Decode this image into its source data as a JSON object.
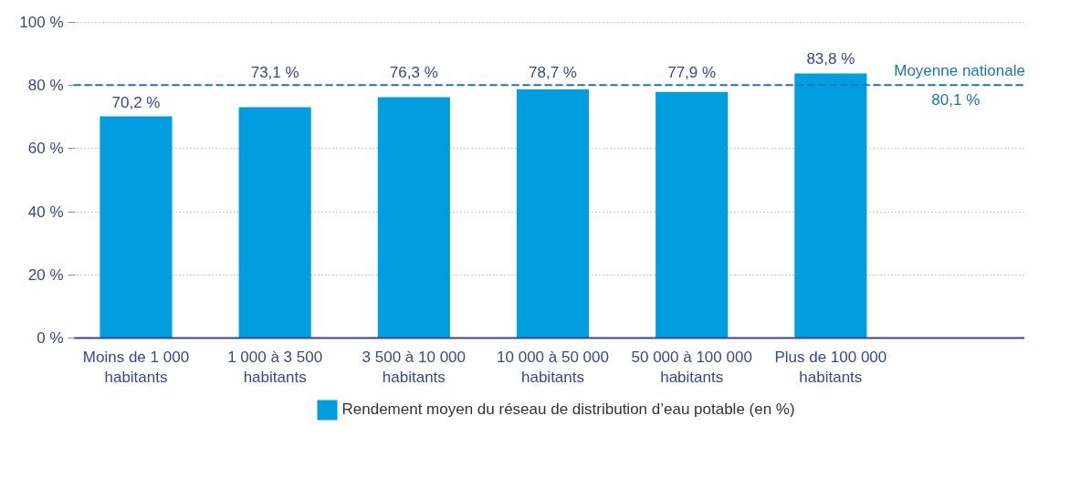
{
  "chart_data": {
    "type": "bar",
    "categories": [
      "Moins de 1 000\nhabitants",
      "1 000 à 3 500\nhabitants",
      "3 500 à 10 000\nhabitants",
      "10 000 à 50 000\nhabitants",
      "50 000 à 100 000\nhabitants",
      "Plus de 100 000\nhabitants"
    ],
    "series": [
      {
        "name": "Rendement moyen du réseau de distribution d’eau potable (en %)",
        "color": "#009ee0",
        "values": [
          70.2,
          73.1,
          76.3,
          78.7,
          77.9,
          83.8
        ],
        "value_labels": [
          "70,2 %",
          "73,1 %",
          "76,3 %",
          "78,7 %",
          "77,9 %",
          "83,8 %"
        ]
      }
    ],
    "ylim": [
      0,
      100
    ],
    "yticks": [
      {
        "value": 0,
        "label": "0 %"
      },
      {
        "value": 20,
        "label": "20 %"
      },
      {
        "value": 40,
        "label": "40 %"
      },
      {
        "value": 60,
        "label": "60 %"
      },
      {
        "value": 80,
        "label": "80 %"
      },
      {
        "value": 100,
        "label": "100 %"
      }
    ],
    "ref_lines": [
      {
        "axis": "y",
        "value": 80.1,
        "label": "Moyenne nationale",
        "color": "#1a75b0",
        "line_style": "dashed"
      }
    ],
    "annotations": [
      {
        "text": "80,1 %",
        "y": 80.1
      }
    ],
    "grid": "y",
    "legend": "bottom"
  }
}
